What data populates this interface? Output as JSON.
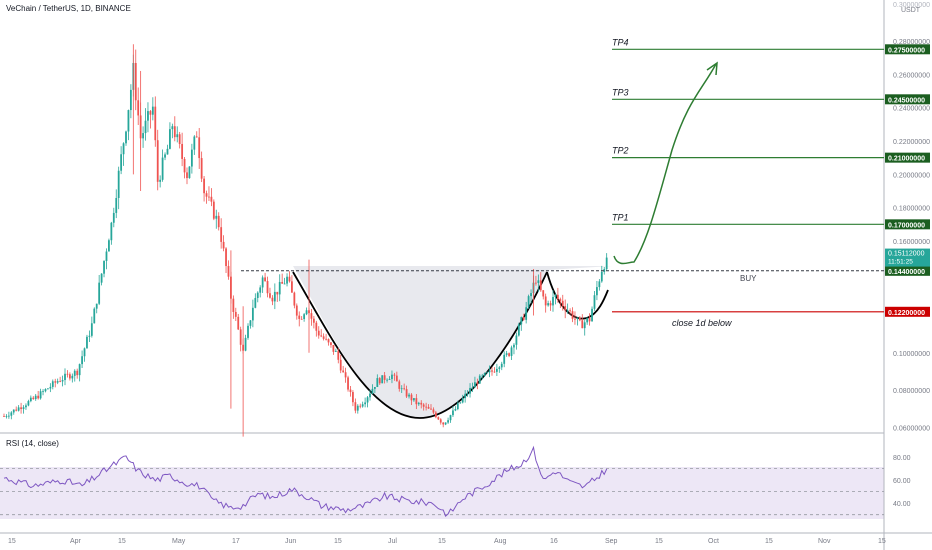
{
  "header": {
    "title": "VeChain / TetherUS, 1D, BINANCE",
    "currency": "USDT"
  },
  "rsi": {
    "title": "RSI (14, close)",
    "upper": 70,
    "lower": 30,
    "mid": 50,
    "ticks": [
      "80.00",
      "60.00",
      "40.00"
    ],
    "line_color": "#7e57c2"
  },
  "chart_data": [
    {
      "type": "candlestick",
      "title": "VeChain / TetherUS, 1D, BINANCE",
      "ylabel": "USDT",
      "ylim": [
        0.0488,
        0.3
      ],
      "y_ticks": [
        "0.28000000",
        "0.26000000",
        "0.24000000",
        "0.22000000",
        "0.20000000",
        "0.18000000",
        "0.16000000",
        "0.10000000",
        "0.08000000",
        "0.06000000"
      ],
      "top_tick_partial": "0.30000000",
      "x_ticks": [
        "15",
        "Apr",
        "15",
        "May",
        "17",
        "Jun",
        "15",
        "Jul",
        "15",
        "Aug",
        "16",
        "Sep",
        "15",
        "Oct",
        "15",
        "Nov",
        "15"
      ],
      "price_keypoints": [
        {
          "day": 0,
          "price": 0.066
        },
        {
          "day": 12,
          "price": 0.075
        },
        {
          "day": 22,
          "price": 0.085
        },
        {
          "day": 30,
          "price": 0.09
        },
        {
          "day": 36,
          "price": 0.115
        },
        {
          "day": 44,
          "price": 0.17
        },
        {
          "day": 50,
          "price": 0.23
        },
        {
          "day": 53,
          "price": 0.262
        },
        {
          "day": 56,
          "price": 0.222
        },
        {
          "day": 61,
          "price": 0.24
        },
        {
          "day": 63,
          "price": 0.196
        },
        {
          "day": 67,
          "price": 0.215
        },
        {
          "day": 69,
          "price": 0.23
        },
        {
          "day": 75,
          "price": 0.2
        },
        {
          "day": 79,
          "price": 0.225
        },
        {
          "day": 82,
          "price": 0.19
        },
        {
          "day": 88,
          "price": 0.17
        },
        {
          "day": 93,
          "price": 0.13
        },
        {
          "day": 98,
          "price": 0.1
        },
        {
          "day": 102,
          "price": 0.125
        },
        {
          "day": 106,
          "price": 0.14
        },
        {
          "day": 110,
          "price": 0.13
        },
        {
          "day": 116,
          "price": 0.14
        },
        {
          "day": 121,
          "price": 0.118
        },
        {
          "day": 124,
          "price": 0.125
        },
        {
          "day": 128,
          "price": 0.112
        },
        {
          "day": 136,
          "price": 0.1
        },
        {
          "day": 140,
          "price": 0.085
        },
        {
          "day": 144,
          "price": 0.07
        },
        {
          "day": 148,
          "price": 0.075
        },
        {
          "day": 153,
          "price": 0.085
        },
        {
          "day": 159,
          "price": 0.088
        },
        {
          "day": 163,
          "price": 0.08
        },
        {
          "day": 169,
          "price": 0.073
        },
        {
          "day": 176,
          "price": 0.068
        },
        {
          "day": 180,
          "price": 0.062
        },
        {
          "day": 184,
          "price": 0.068
        },
        {
          "day": 189,
          "price": 0.077
        },
        {
          "day": 194,
          "price": 0.085
        },
        {
          "day": 200,
          "price": 0.09
        },
        {
          "day": 207,
          "price": 0.1
        },
        {
          "day": 213,
          "price": 0.12
        },
        {
          "day": 218,
          "price": 0.14
        },
        {
          "day": 222,
          "price": 0.125
        },
        {
          "day": 226,
          "price": 0.13
        },
        {
          "day": 230,
          "price": 0.125
        },
        {
          "day": 236,
          "price": 0.115
        },
        {
          "day": 240,
          "price": 0.118
        },
        {
          "day": 243,
          "price": 0.135
        },
        {
          "day": 245,
          "price": 0.145
        },
        {
          "day": 247,
          "price": 0.1511
        }
      ],
      "rsi_keypoints": [
        {
          "day": 0,
          "value": 62
        },
        {
          "day": 12,
          "value": 55
        },
        {
          "day": 24,
          "value": 60
        },
        {
          "day": 32,
          "value": 55
        },
        {
          "day": 44,
          "value": 72
        },
        {
          "day": 50,
          "value": 80
        },
        {
          "day": 55,
          "value": 68
        },
        {
          "day": 62,
          "value": 60
        },
        {
          "day": 68,
          "value": 64
        },
        {
          "day": 74,
          "value": 58
        },
        {
          "day": 80,
          "value": 55
        },
        {
          "day": 86,
          "value": 42
        },
        {
          "day": 93,
          "value": 36
        },
        {
          "day": 98,
          "value": 38
        },
        {
          "day": 104,
          "value": 48
        },
        {
          "day": 110,
          "value": 45
        },
        {
          "day": 118,
          "value": 52
        },
        {
          "day": 124,
          "value": 46
        },
        {
          "day": 130,
          "value": 38
        },
        {
          "day": 140,
          "value": 34
        },
        {
          "day": 148,
          "value": 38
        },
        {
          "day": 156,
          "value": 46
        },
        {
          "day": 166,
          "value": 42
        },
        {
          "day": 176,
          "value": 40
        },
        {
          "day": 182,
          "value": 30
        },
        {
          "day": 188,
          "value": 44
        },
        {
          "day": 196,
          "value": 54
        },
        {
          "day": 206,
          "value": 68
        },
        {
          "day": 212,
          "value": 74
        },
        {
          "day": 217,
          "value": 86
        },
        {
          "day": 221,
          "value": 60
        },
        {
          "day": 226,
          "value": 68
        },
        {
          "day": 232,
          "value": 58
        },
        {
          "day": 238,
          "value": 54
        },
        {
          "day": 243,
          "value": 62
        },
        {
          "day": 247,
          "value": 70
        }
      ],
      "levels": [
        {
          "name": "TP4",
          "price": 0.275,
          "label": "0.27500000",
          "color": "#1b5e20"
        },
        {
          "name": "TP3",
          "price": 0.245,
          "label": "0.24500000",
          "color": "#1b5e20"
        },
        {
          "name": "TP2",
          "price": 0.21,
          "label": "0.21000000",
          "color": "#1b5e20"
        },
        {
          "name": "TP1",
          "price": 0.17,
          "label": "0.17000000",
          "color": "#1b5e20"
        },
        {
          "name": "",
          "price": 0.144,
          "label": "0.14400000",
          "color": "#1b5e20"
        },
        {
          "name": "",
          "price": 0.122,
          "label": "0.12200000",
          "color": "#cc0000"
        }
      ],
      "current_price": {
        "label": "0.15112000",
        "countdown": "11:51:25",
        "price": 0.1511,
        "color": "#26a69a"
      },
      "annotations": {
        "buy": "BUY",
        "stop": "close 1d below"
      },
      "colors": {
        "up": "#26a69a",
        "down": "#ef5350",
        "target": "#2e7d32",
        "stop": "#cc0000",
        "cup_fill": "#e2e4ea",
        "pattern_stroke": "#000000"
      }
    }
  ]
}
